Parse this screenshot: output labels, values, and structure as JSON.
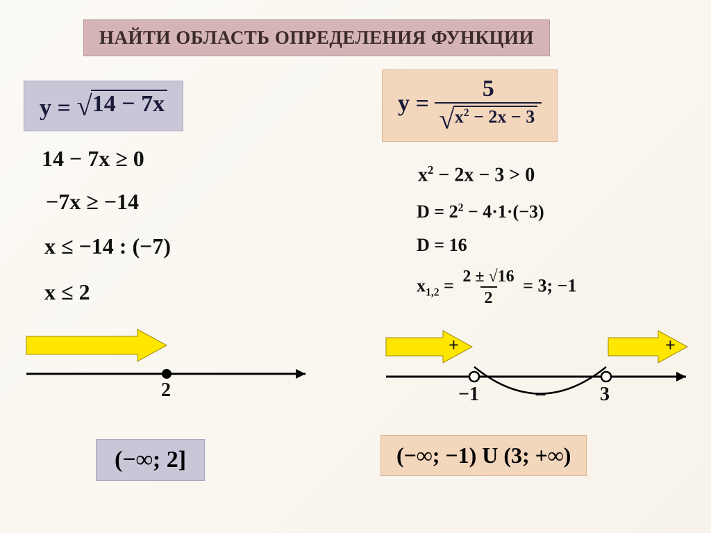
{
  "title": "НАЙТИ  ОБЛАСТЬ ОПРЕДЕЛЕНИЯ  ФУНКЦИИ",
  "left": {
    "equation_prefix": "y = ",
    "radicand": "14 − 7x",
    "steps": {
      "s1": "14 − 7х  ≥  0",
      "s2": "−7х  ≥ −14",
      "s3": "х  ≤ −14 : (−7)",
      "s4": "х  ≤ 2"
    },
    "tick": "2",
    "answer": "(−∞; 2]"
  },
  "right": {
    "equation_prefix": "y = ",
    "numerator": "5",
    "den_radicand_html": "х<sup>2</sup> − 2х − 3",
    "steps": {
      "s1_html": "х<sup>2</sup> − 2х − 3 > 0",
      "d1_html": "D = 2<sup>2</sup> − 4·1·(−3)",
      "d2": "D = 16",
      "roots_prefix": "х",
      "roots_sub": "1,2",
      "roots_eq": " = ",
      "roots_num": "2 ± √16",
      "roots_den": "2",
      "roots_suffix": "  = 3; −1"
    },
    "tick_left": "−1",
    "tick_right": "3",
    "plus": "+",
    "minus": "−",
    "answer": "(−∞; −1) U (3; +∞)"
  },
  "colors": {
    "title_bg": "#d5b4b6",
    "left_box_bg": "#c9c6d8",
    "right_box_bg": "#f3d7bd",
    "arrow_fill": "#ffe600"
  }
}
